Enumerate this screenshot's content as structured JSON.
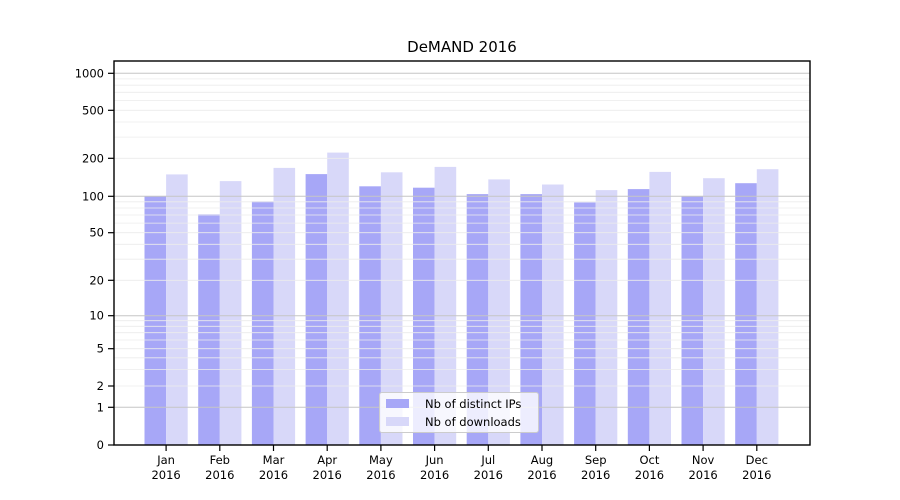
{
  "chart_data": {
    "type": "bar",
    "title": "DeMAND 2016",
    "categories": [
      "Jan",
      "Feb",
      "Mar",
      "Apr",
      "May",
      "Jun",
      "Jul",
      "Aug",
      "Sep",
      "Oct",
      "Nov",
      "Dec"
    ],
    "category_year": "2016",
    "series": [
      {
        "name": "Nb of distinct IPs",
        "color": "#a7a7f7",
        "values": [
          100,
          71,
          91,
          150,
          120,
          117,
          104,
          104,
          89,
          114,
          100,
          127
        ]
      },
      {
        "name": "Nb of downloads",
        "color": "#d8d8f9",
        "values": [
          149,
          132,
          168,
          223,
          155,
          171,
          136,
          124,
          112,
          156,
          139,
          164
        ]
      }
    ],
    "y_scale": "symlog",
    "y_ticks": [
      0,
      1,
      2,
      5,
      10,
      20,
      50,
      100,
      200,
      500,
      1000
    ],
    "y_major_ticks": [
      1,
      10,
      100,
      1000
    ],
    "ylim": [
      0,
      1400
    ],
    "xlabel": "",
    "ylabel": "",
    "grid": "both",
    "legend_position": "lower center",
    "colors": {
      "spine": "#000000",
      "major_grid": "#c6c6c6",
      "minor_grid": "#ececec",
      "tick_text": "#000000"
    }
  }
}
